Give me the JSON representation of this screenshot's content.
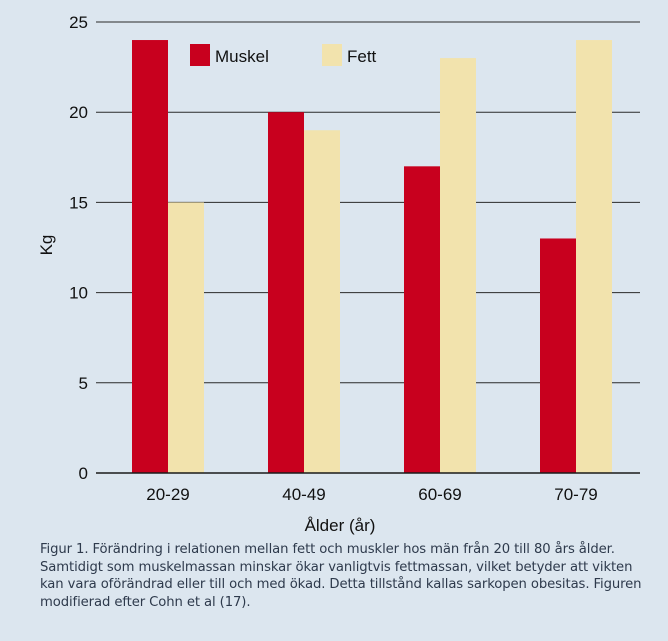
{
  "chart_data": {
    "type": "bar",
    "categories": [
      "20-29",
      "40-49",
      "60-69",
      "70-79"
    ],
    "series": [
      {
        "name": "Muskel",
        "values": [
          24,
          20,
          17,
          13
        ],
        "color": "#c8001e"
      },
      {
        "name": "Fett",
        "values": [
          15,
          19,
          23,
          24
        ],
        "color": "#f2e3ad"
      }
    ],
    "xlabel": "Ålder (år)",
    "ylabel": "Kg",
    "ylim": [
      0,
      25
    ],
    "yticks": [
      0,
      5,
      10,
      15,
      20,
      25
    ],
    "grid": true,
    "legend": "top",
    "background": "#dce6ef"
  },
  "caption": "Figur 1. Förändring i relationen mellan fett och muskler hos män från 20 till 80 års ålder. Samtidigt som muskelmassan minskar ökar vanligtvis fettmassan, vilket betyder att vikten kan vara oförändrad eller till och med ökad. Detta tillstånd kallas sarkopen obesitas. Figuren modifierad efter Cohn et al (17)."
}
